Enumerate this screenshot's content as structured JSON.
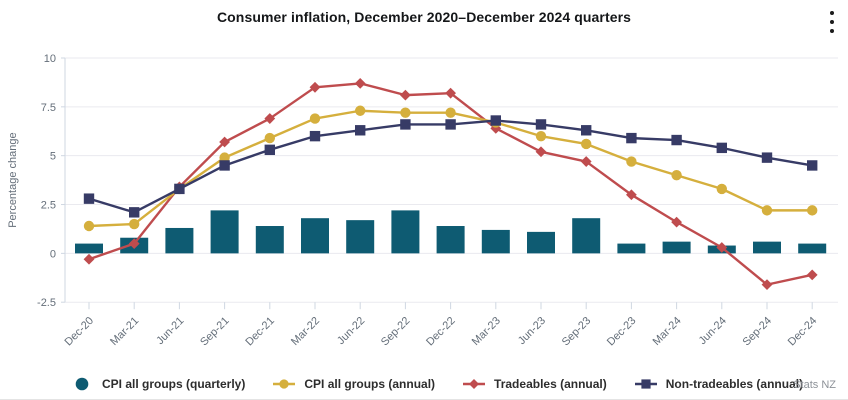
{
  "chart_data": {
    "type": "combo-bar-line",
    "title": "Consumer inflation, December 2020–December 2024 quarters",
    "xlabel": "",
    "ylabel": "Percentage change",
    "ylim": [
      -2.5,
      10
    ],
    "yticks": [
      10,
      7.5,
      5,
      2.5,
      0,
      -2.5
    ],
    "grid": true,
    "legend_position": "bottom",
    "categories": [
      "Dec-20",
      "Mar-21",
      "Jun-21",
      "Sep-21",
      "Dec-21",
      "Mar-22",
      "Jun-22",
      "Sep-22",
      "Dec-22",
      "Mar-23",
      "Jun-23",
      "Sep-23",
      "Dec-23",
      "Mar-24",
      "Jun-24",
      "Sep-24",
      "Dec-24"
    ],
    "series": [
      {
        "name": "CPI all groups (quarterly)",
        "type": "bar",
        "marker": "circle",
        "color": "#0e5b72",
        "values": [
          0.5,
          0.8,
          1.3,
          2.2,
          1.4,
          1.8,
          1.7,
          2.2,
          1.4,
          1.2,
          1.1,
          1.8,
          0.5,
          0.6,
          0.4,
          0.6,
          0.5
        ]
      },
      {
        "name": "CPI all groups (annual)",
        "type": "line",
        "marker": "circle",
        "color": "#d5af3d",
        "values": [
          1.4,
          1.5,
          3.3,
          4.9,
          5.9,
          6.9,
          7.3,
          7.2,
          7.2,
          6.7,
          6.0,
          5.6,
          4.7,
          4.0,
          3.3,
          2.2,
          2.2
        ]
      },
      {
        "name": "Tradeables (annual)",
        "type": "line",
        "marker": "diamond",
        "color": "#bf4c4e",
        "values": [
          -0.3,
          0.5,
          3.4,
          5.7,
          6.9,
          8.5,
          8.7,
          8.1,
          8.2,
          6.4,
          5.2,
          4.7,
          3.0,
          1.6,
          0.3,
          -1.6,
          -1.1
        ]
      },
      {
        "name": "Non-tradeables (annual)",
        "type": "line",
        "marker": "square",
        "color": "#373b66",
        "values": [
          2.8,
          2.1,
          3.3,
          4.5,
          5.3,
          6.0,
          6.3,
          6.6,
          6.6,
          6.8,
          6.6,
          6.3,
          5.9,
          5.8,
          5.4,
          4.9,
          4.5
        ]
      }
    ]
  },
  "menu": {
    "icon": "kebab-menu-icon"
  },
  "attribution": "Stats NZ"
}
